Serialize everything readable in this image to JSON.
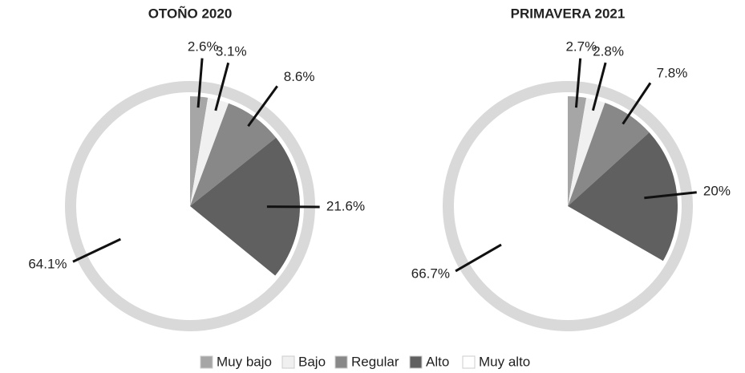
{
  "chart_data": [
    {
      "type": "pie",
      "title": "OTOÑO 2020",
      "categories": [
        "Muy bajo",
        "Bajo",
        "Regular",
        "Alto",
        "Muy alto"
      ],
      "values": [
        2.6,
        3.1,
        8.6,
        21.6,
        64.1
      ],
      "value_labels": [
        "2.6%",
        "3.1%",
        "8.6%",
        "21.6%",
        "64.1%"
      ],
      "colors": [
        "#a6a6a6",
        "#f0f0f0",
        "#888888",
        "#606060",
        "#ffffff"
      ]
    },
    {
      "type": "pie",
      "title": "PRIMAVERA 2021",
      "categories": [
        "Muy bajo",
        "Bajo",
        "Regular",
        "Alto",
        "Muy alto"
      ],
      "values": [
        2.7,
        2.8,
        7.8,
        20,
        66.7
      ],
      "value_labels": [
        "2.7%",
        "2.8%",
        "7.8%",
        "20%",
        "66.7%"
      ],
      "colors": [
        "#a6a6a6",
        "#f0f0f0",
        "#888888",
        "#606060",
        "#ffffff"
      ]
    }
  ]
}
